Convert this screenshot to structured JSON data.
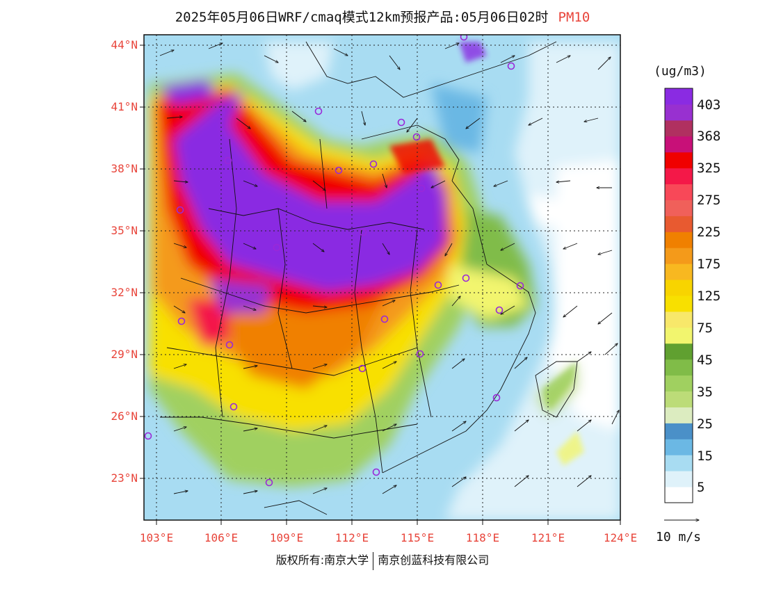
{
  "title": {
    "main": "2025年05月06日WRF/cmaq模式12km预报产品:05月06日02时",
    "pollutant": "PM10"
  },
  "map": {
    "lon_range": [
      102.8,
      124
    ],
    "lat_range": [
      21.0,
      44.4
    ],
    "lat_ticks": [
      "44°N",
      "41°N",
      "38°N",
      "35°N",
      "32°N",
      "29°N",
      "26°N",
      "23°N"
    ],
    "lon_ticks": [
      "103°E",
      "106°E",
      "109°E",
      "112°E",
      "115°E",
      "118°E",
      "121°E",
      "124°E"
    ]
  },
  "legend": {
    "unit": "(ug/m3)",
    "colors": [
      "#ffffff",
      "#dff2fa",
      "#a8dcf2",
      "#6bb8e4",
      "#4a90c8",
      "#dcecc0",
      "#bcdc78",
      "#a0d060",
      "#80bc48",
      "#60a030",
      "#f2f56e",
      "#f8e86a",
      "#f8e000",
      "#f8d400",
      "#f8b820",
      "#f49a1a",
      "#f08000",
      "#e85a30",
      "#f0605a",
      "#f84858",
      "#f41848",
      "#f00000",
      "#c81078",
      "#b03060",
      "#9830d0",
      "#8a2be2"
    ],
    "labels": [
      "5",
      "15",
      "25",
      "35",
      "45",
      "75",
      "125",
      "175",
      "225",
      "275",
      "325",
      "368",
      "403"
    ],
    "wind_reference": "10 m/s"
  },
  "footer": {
    "copyright": "版权所有:南京大学",
    "company": "南京创蓝科技有限公司"
  }
}
